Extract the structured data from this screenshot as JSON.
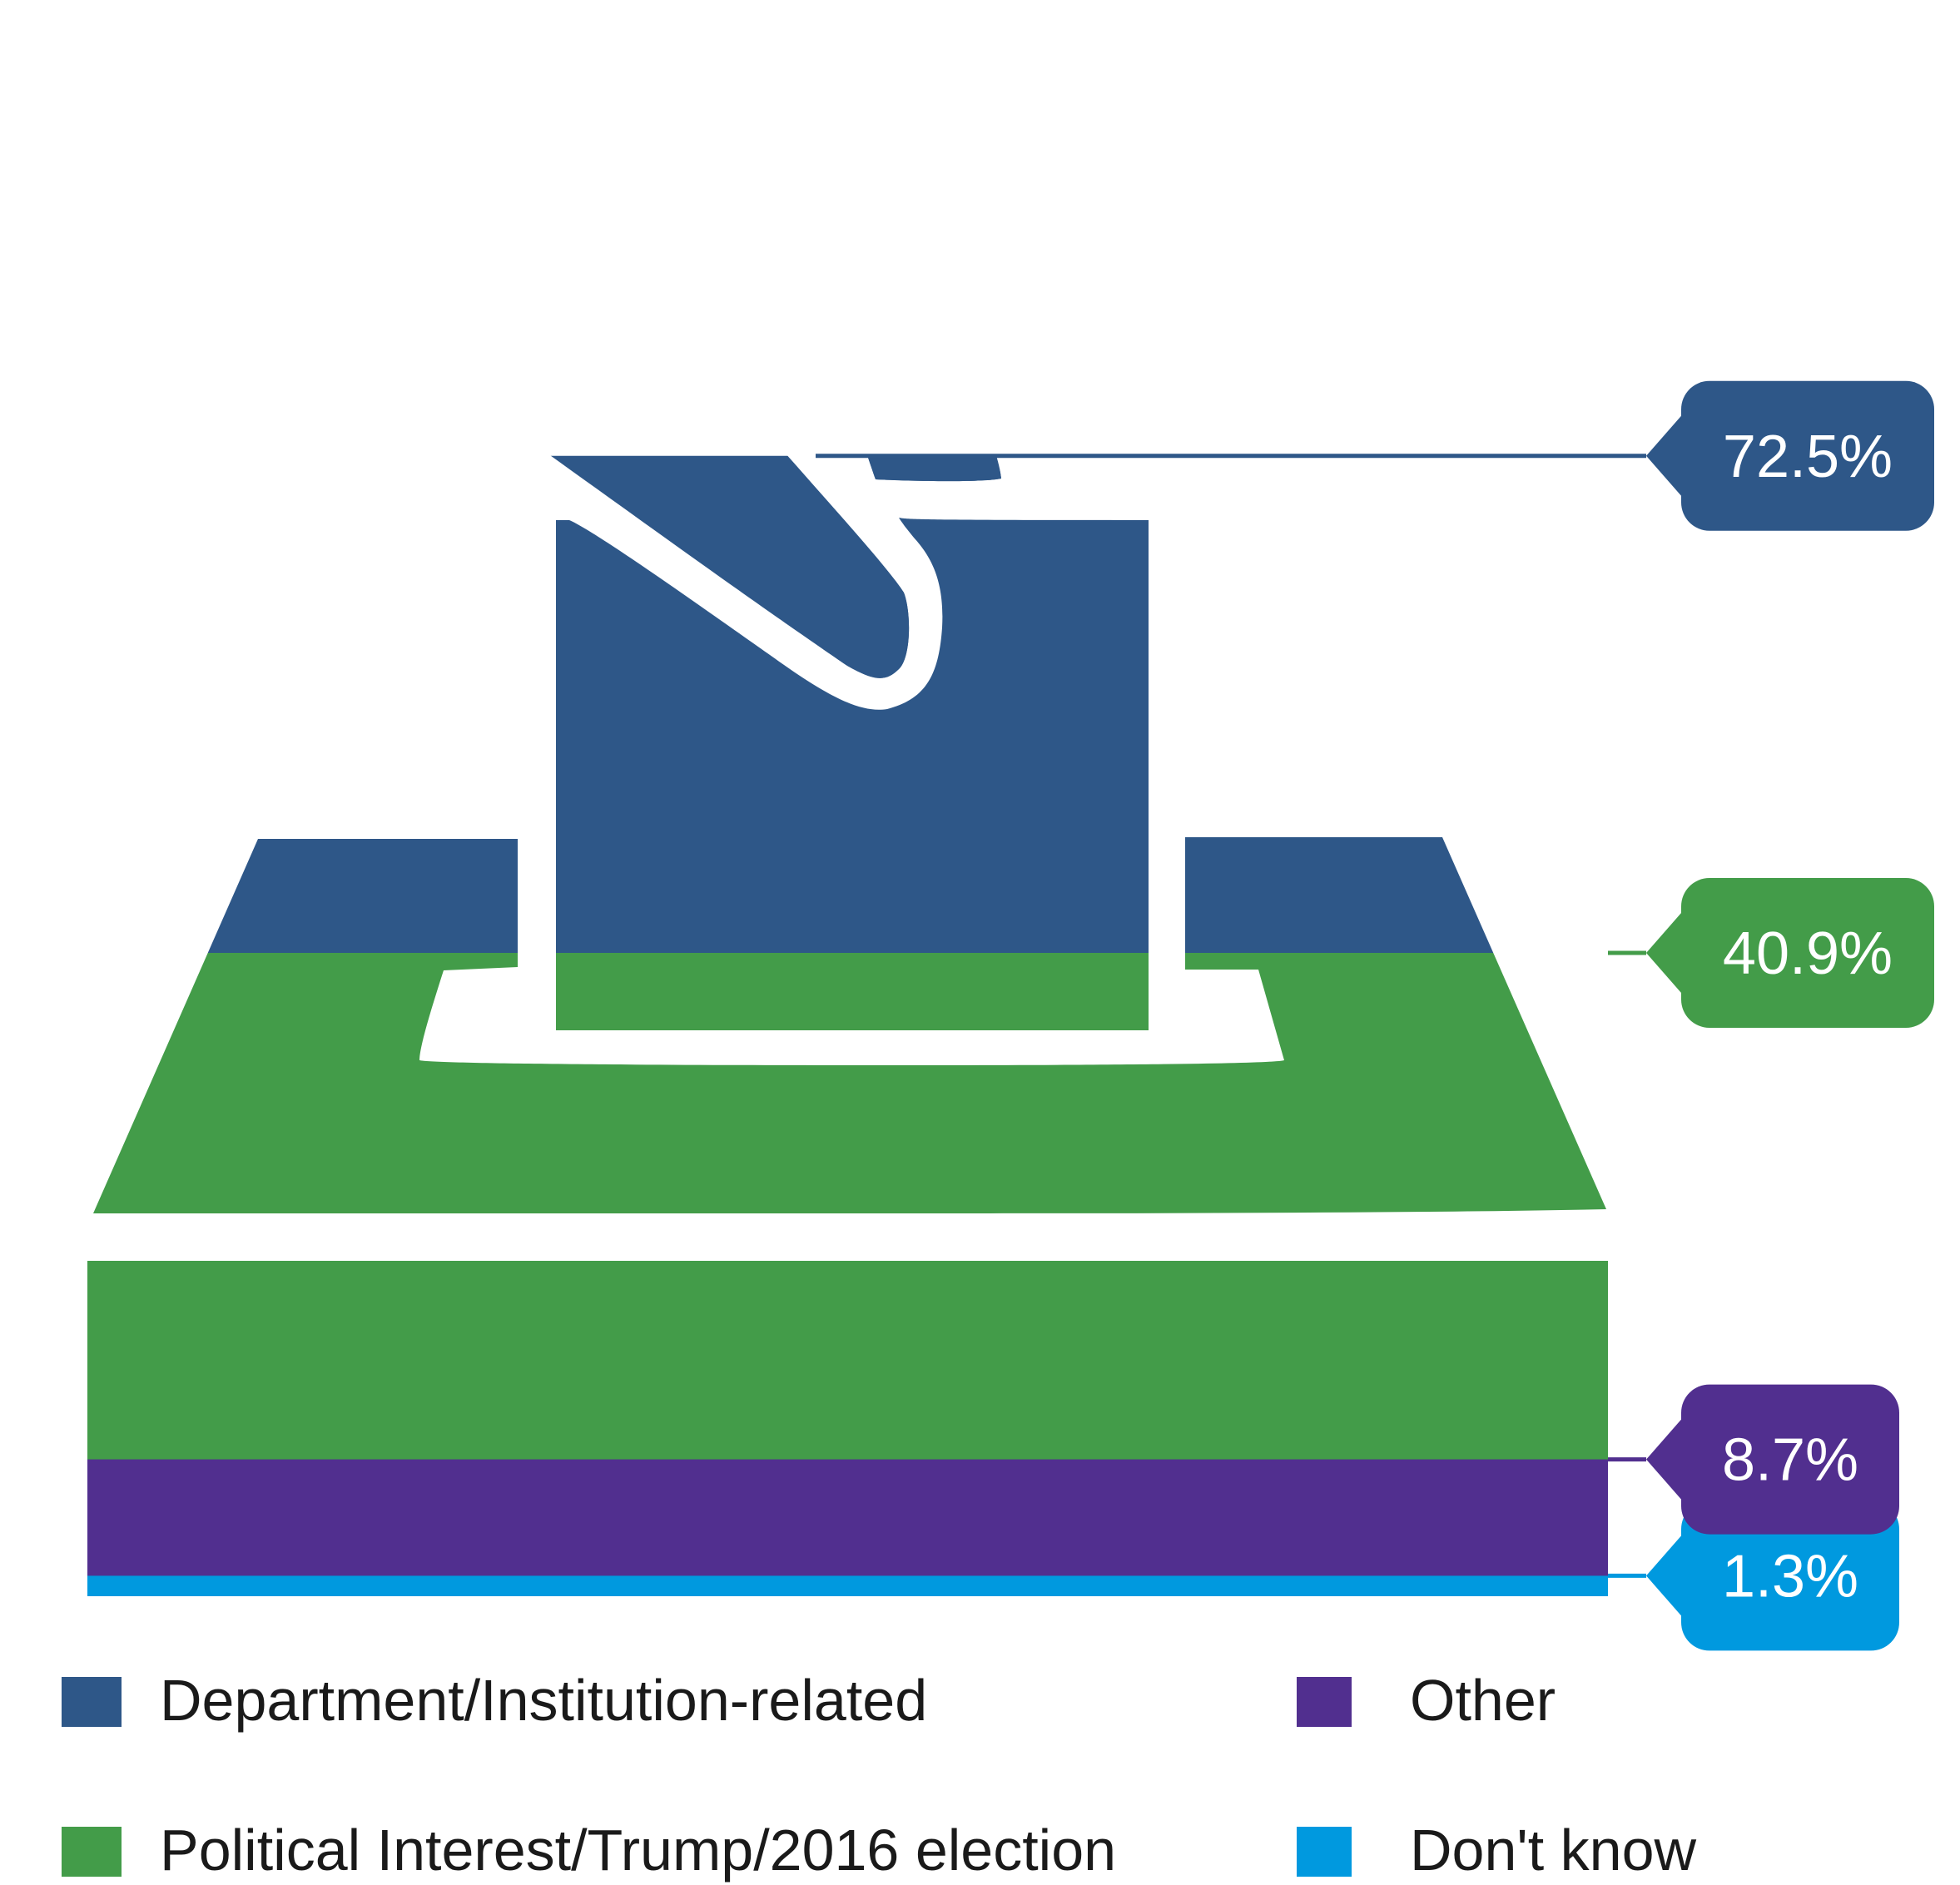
{
  "chart_data": {
    "type": "pictorial-area",
    "series": [
      {
        "name": "Department/Institution-related",
        "value": 72.5,
        "label": "72.5%",
        "color": "#2E5788"
      },
      {
        "name": "Political Interest/Trump/2016 election",
        "value": 40.9,
        "label": "40.9%",
        "color": "#439C49"
      },
      {
        "name": "Other",
        "value": 8.7,
        "label": "8.7%",
        "color": "#512F8F"
      },
      {
        "name": "Don't know",
        "value": 1.3,
        "label": "1.3%",
        "color": "#0099DF"
      }
    ],
    "ylim": [
      0,
      100
    ],
    "legend": {
      "position": "bottom",
      "columns": 2
    },
    "pictogram": "ballot-box-hand-icon"
  }
}
